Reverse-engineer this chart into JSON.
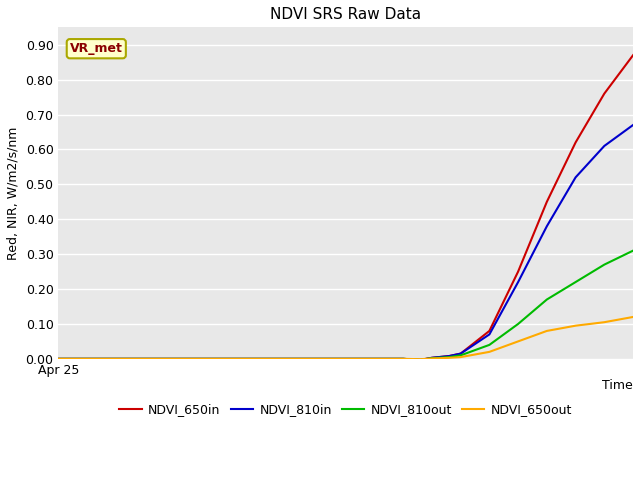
{
  "title": "NDVI SRS Raw Data",
  "ylabel": "Red, NIR, W/m2/s/nm",
  "xlabel": "Time",
  "x_start_label": "Apr 25",
  "background_color": "#e8e8e8",
  "figure_background": "#ffffff",
  "ylim": [
    0.0,
    0.95
  ],
  "xlim": [
    0,
    100
  ],
  "yticks": [
    0.0,
    0.1,
    0.2,
    0.3,
    0.4,
    0.5,
    0.6,
    0.7,
    0.8,
    0.9
  ],
  "annotation_text": "VR_met",
  "annotation_box_color": "#ffffcc",
  "annotation_box_edge": "#aaa800",
  "series": [
    {
      "label": "NDVI_650in",
      "color": "#cc0000",
      "x": [
        0,
        55,
        60,
        63,
        65,
        68,
        70,
        75,
        80,
        85,
        90,
        95,
        100
      ],
      "y": [
        0.0,
        0.0,
        0.0,
        -0.003,
        0.003,
        0.008,
        0.015,
        0.08,
        0.25,
        0.45,
        0.62,
        0.76,
        0.87
      ]
    },
    {
      "label": "NDVI_810in",
      "color": "#0000cc",
      "x": [
        0,
        55,
        60,
        63,
        65,
        68,
        70,
        75,
        80,
        85,
        90,
        95,
        100
      ],
      "y": [
        0.0,
        0.0,
        0.0,
        -0.003,
        0.003,
        0.008,
        0.015,
        0.07,
        0.22,
        0.38,
        0.52,
        0.61,
        0.67
      ]
    },
    {
      "label": "NDVI_810out",
      "color": "#00bb00",
      "x": [
        0,
        55,
        60,
        63,
        65,
        68,
        70,
        75,
        80,
        85,
        90,
        95,
        100
      ],
      "y": [
        0.0,
        0.0,
        0.0,
        -0.003,
        0.002,
        0.005,
        0.01,
        0.04,
        0.1,
        0.17,
        0.22,
        0.27,
        0.31
      ]
    },
    {
      "label": "NDVI_650out",
      "color": "#ffaa00",
      "x": [
        0,
        55,
        60,
        63,
        65,
        68,
        70,
        75,
        80,
        85,
        90,
        95,
        100
      ],
      "y": [
        0.0,
        0.0,
        0.0,
        -0.001,
        0.001,
        0.003,
        0.005,
        0.02,
        0.05,
        0.08,
        0.095,
        0.105,
        0.12
      ]
    }
  ],
  "legend_ncol": 4,
  "title_fontsize": 11,
  "axis_label_fontsize": 9,
  "tick_fontsize": 9,
  "legend_fontsize": 9
}
